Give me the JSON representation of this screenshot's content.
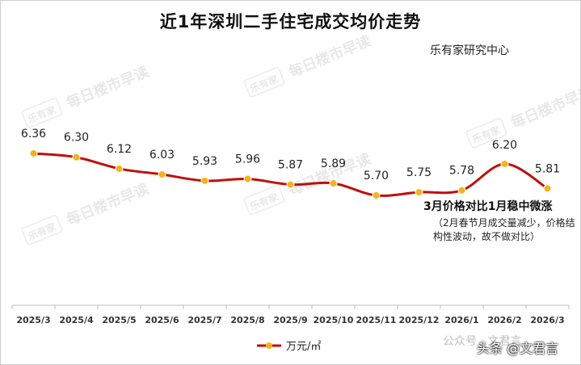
{
  "title": "近1年深圳二手住宅成交均价走势",
  "source": "乐有家研究中心",
  "watermark_logo": "乐有家",
  "watermark_text": "每日楼市早读",
  "annotation_title": "3月价格对比1月稳中微涨",
  "annotation_note": "（2月春节月成交量减少，价格结构性波动，故不做对比）",
  "footer_faint": "公众号 · 文君言",
  "footer": "头条 @文君言",
  "colors": {
    "line": "#c0100a",
    "marker": "#f5b316",
    "axis": "#bfbfbf"
  },
  "chart_data": {
    "type": "line",
    "categories": [
      "2025/3",
      "2025/4",
      "2025/5",
      "2025/6",
      "2025/7",
      "2025/8",
      "2025/9",
      "2025/10",
      "2025/11",
      "2025/12",
      "2026/1",
      "2026/2",
      "2026/3"
    ],
    "series": [
      {
        "name": "万元/㎡",
        "values": [
          6.36,
          6.3,
          6.12,
          6.03,
          5.93,
          5.96,
          5.87,
          5.89,
          5.7,
          5.75,
          5.78,
          6.2,
          5.81
        ]
      }
    ],
    "data_labels": [
      "6.36",
      "6.30",
      "6.12",
      "6.03",
      "5.93",
      "5.96",
      "5.87",
      "5.89",
      "5.70",
      "5.75",
      "5.78",
      "6.20",
      "5.81"
    ],
    "legend": "bottom-center",
    "grid": false,
    "smooth": true
  }
}
